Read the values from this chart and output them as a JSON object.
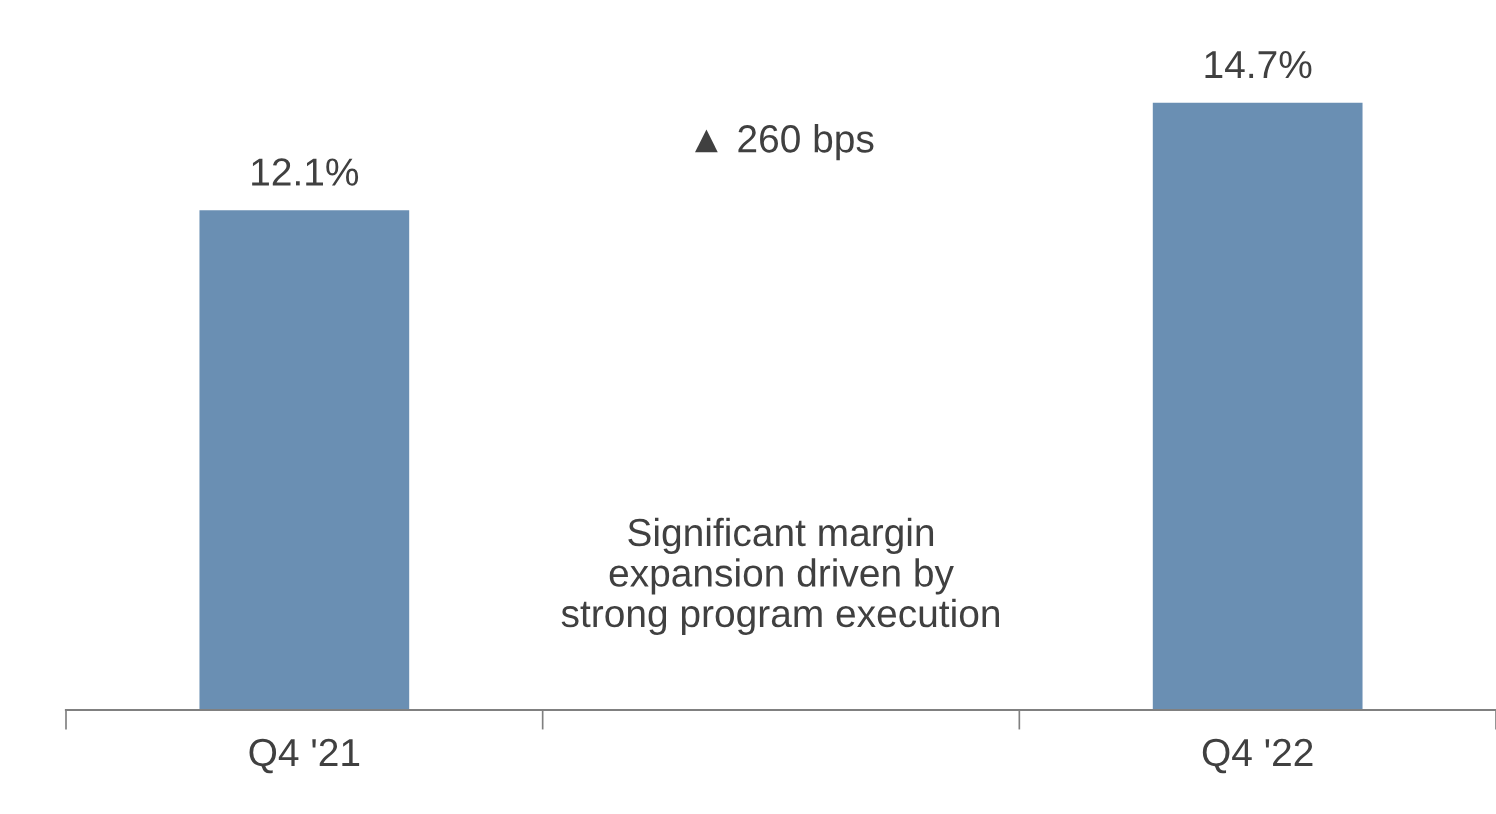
{
  "chart_data": {
    "type": "bar",
    "categories": [
      "Q4 '21",
      null,
      "Q4 '22"
    ],
    "values": [
      12.1,
      null,
      14.7
    ],
    "value_labels": [
      "12.1%",
      null,
      "14.7%"
    ],
    "color": "#6a8fb3",
    "annotations": [
      "▲ 260 bps",
      "Significant margin\nexpansion driven by\nstrong program execution"
    ],
    "grid": false,
    "legend": false
  }
}
